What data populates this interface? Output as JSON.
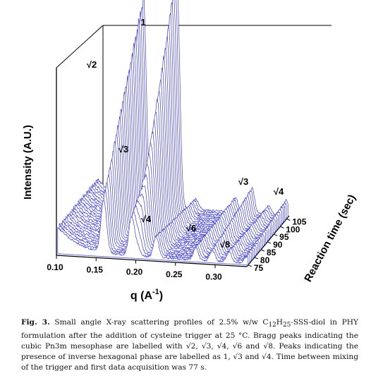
{
  "chart_data": {
    "type": "line",
    "subtype": "3d-waterfall",
    "xlabel": "q (A",
    "xlabel_sup": "-1",
    "xlabel_close": ")",
    "ylabel": "Intensity (A.U.)",
    "zlabel": "Reaction time (sec)",
    "x_ticks": [
      "0.10",
      "0.15",
      "0.20",
      "0.25",
      "0.30"
    ],
    "x_tick_values": [
      0.1,
      0.15,
      0.2,
      0.25,
      0.3
    ],
    "xlim": [
      0.1,
      0.34
    ],
    "z_ticks": [
      "75",
      "80",
      "85",
      "90",
      "95",
      "100",
      "105"
    ],
    "z_tick_values": [
      75,
      80,
      85,
      90,
      95,
      100,
      105
    ],
    "zlim": [
      74,
      107
    ],
    "line_color": "#4a4ac8",
    "series_count": 26,
    "baseline": 0.12,
    "peaks": [
      {
        "label": "√2",
        "q": 0.158,
        "height": [
          0.25,
          0.98
        ],
        "width": 0.0035
      },
      {
        "label": "√3",
        "q": 0.193,
        "height": [
          0.18,
          0.3
        ],
        "width": 0.0034
      },
      {
        "label": "1",
        "q": 0.2,
        "height": [
          0.05,
          1.08
        ],
        "width": 0.0036
      },
      {
        "label": "√4",
        "q": 0.224,
        "height": [
          0.1,
          0.05
        ],
        "width": 0.0033
      },
      {
        "label": "√6",
        "q": 0.274,
        "height": [
          0.06,
          0.07
        ],
        "width": 0.003
      },
      {
        "label": "√3",
        "q": 0.295,
        "height": [
          0.05,
          0.12
        ],
        "width": 0.003
      },
      {
        "label": "√8",
        "q": 0.316,
        "height": [
          0.05,
          0.04
        ],
        "width": 0.003
      },
      {
        "label": "√4",
        "q": 0.338,
        "height": [
          0.03,
          0.07
        ],
        "width": 0.003
      }
    ],
    "peak_labels": [
      "√2",
      "1",
      "√3",
      "√4",
      "√6",
      "√8",
      "√3",
      "√4"
    ]
  },
  "caption": {
    "fig_label": "Fig. 3.",
    "text_1": " Small angle X-ray scattering profiles of 2.5% w/w C",
    "sub_1": "12",
    "text_2": "H",
    "sub_2": "25",
    "text_3": "-SSS-diol in PHY formulation after the addition of cysteine trigger at 25 °C. Bragg peaks indicating the cubic Pn3m mesophase are labelled with √2, √3, √4, √6 and √8. Peaks indicating the presence of inverse hexagonal phase are labelled as 1, √3 and √4. Time between mixing of the trigger and first data acquisition was 77 s."
  }
}
